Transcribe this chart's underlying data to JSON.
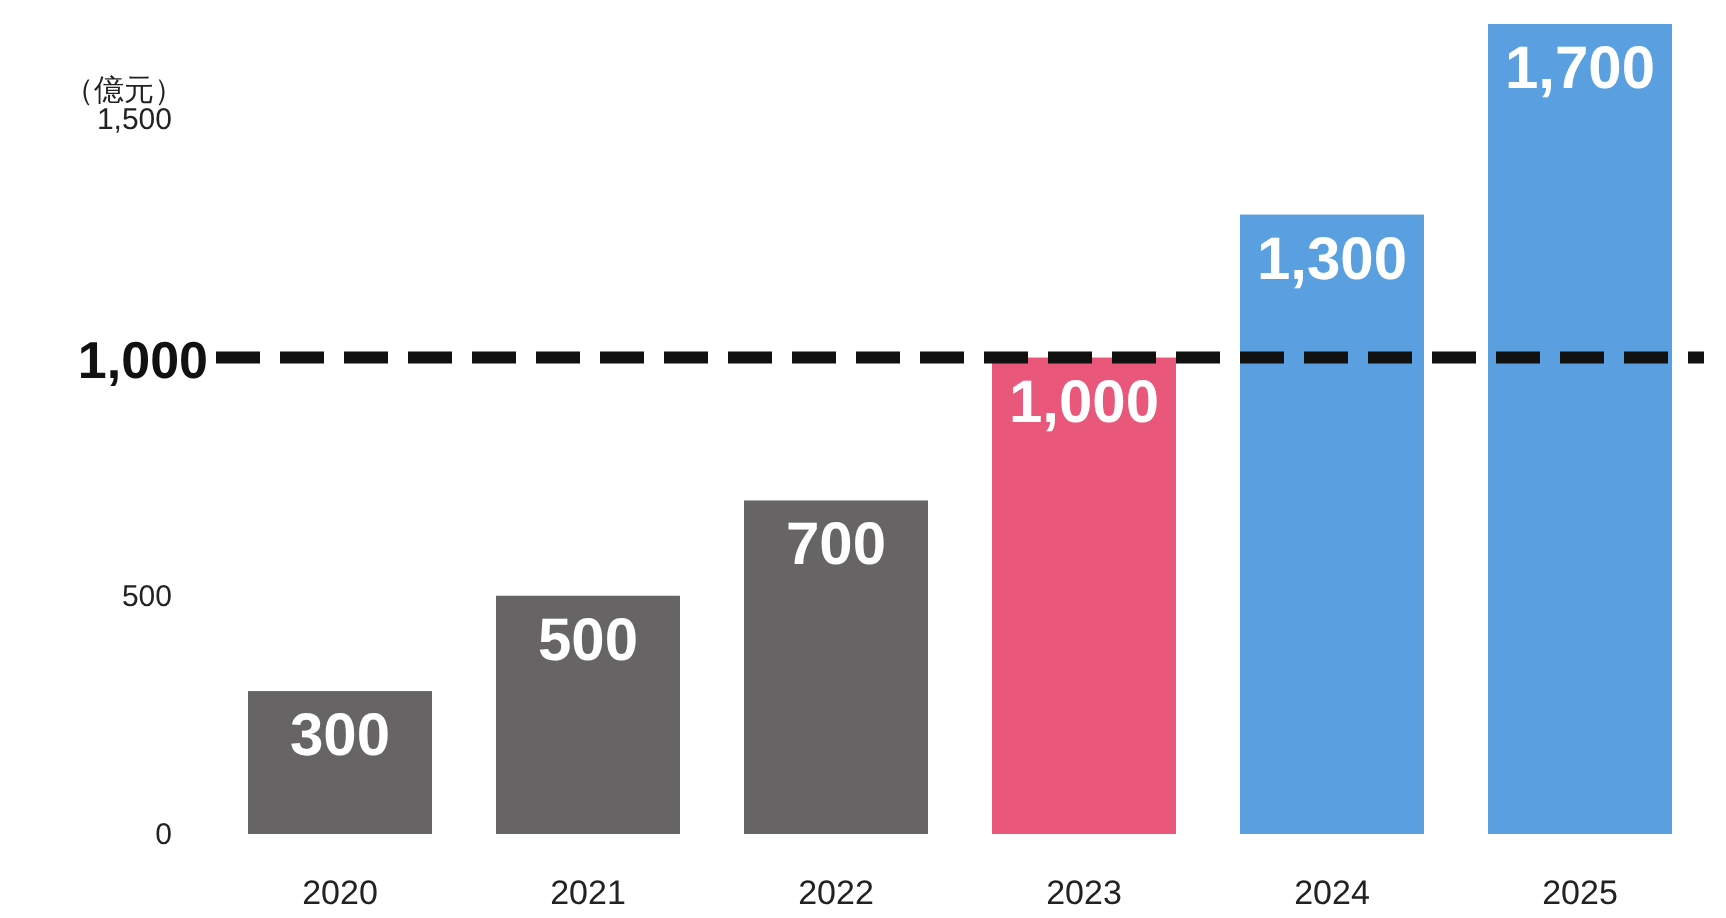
{
  "chart_data": {
    "type": "bar",
    "ylabel": "（億元）",
    "categories": [
      "2020",
      "2021",
      "2022",
      "2023",
      "2024",
      "2025"
    ],
    "values": [
      300,
      500,
      700,
      1000,
      1300,
      1700
    ],
    "colors": [
      "#666464",
      "#666464",
      "#666464",
      "#e9577a",
      "#5a9fe0",
      "#5a9fe0"
    ],
    "value_labels": [
      "300",
      "500",
      "700",
      "1,000",
      "1,300",
      "1,700"
    ],
    "ylim": [
      0,
      1700
    ],
    "yticks": [
      0,
      500,
      {
        "value": 1500,
        "label": "1,500"
      }
    ],
    "ref_lines": [
      {
        "axis": "y",
        "value": 1000,
        "label": "1,000",
        "color": "#111111",
        "line_style": "dashed"
      }
    ]
  }
}
